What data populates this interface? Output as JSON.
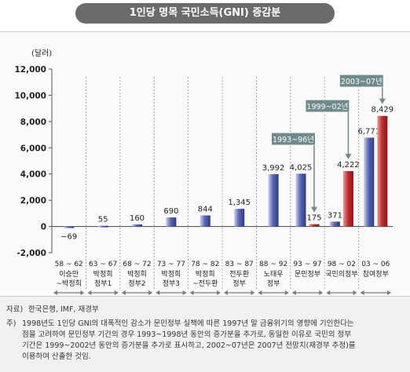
{
  "title": "1인당 명목 국민소득(GNI) 증감분",
  "chart_data": {
    "type": "bar",
    "ylabel": "(달러)",
    "ylim": [
      -2000,
      12000
    ],
    "yticks": [
      "12,000",
      "10,000",
      "8,000",
      "6,000",
      "4,000",
      "2,000",
      "0",
      "-2,000"
    ],
    "ytick_values": [
      12000,
      10000,
      8000,
      6000,
      4000,
      2000,
      0,
      -2000
    ],
    "grid": "vertical dashed separators",
    "groups": [
      {
        "period": "58 ~ 62",
        "era": [
          "이승만",
          "~박정희"
        ],
        "bars": [
          {
            "value": -69,
            "label": "−69",
            "color": "blue"
          }
        ]
      },
      {
        "period": "63 ~ 67",
        "era": [
          "박정희",
          "정부1"
        ],
        "bars": [
          {
            "value": 55,
            "label": "55",
            "color": "blue"
          }
        ]
      },
      {
        "period": "68 ~ 72",
        "era": [
          "박정희",
          "정부2"
        ],
        "bars": [
          {
            "value": 160,
            "label": "160",
            "color": "blue"
          }
        ]
      },
      {
        "period": "73 ~ 77",
        "era": [
          "박정희",
          "정부3"
        ],
        "bars": [
          {
            "value": 690,
            "label": "690",
            "color": "blue"
          }
        ]
      },
      {
        "period": "78 ~ 82",
        "era": [
          "박정희",
          "~전두환"
        ],
        "bars": [
          {
            "value": 844,
            "label": "844",
            "color": "blue"
          }
        ]
      },
      {
        "period": "83 ~ 87",
        "era": [
          "전두환",
          "정부"
        ],
        "bars": [
          {
            "value": 1345,
            "label": "1,345",
            "color": "blue"
          }
        ]
      },
      {
        "period": "88 ~ 92",
        "era": [
          "노태우",
          "정부"
        ],
        "bars": [
          {
            "value": 3992,
            "label": "3,992",
            "color": "blue"
          }
        ]
      },
      {
        "period": "93 ~ 97",
        "era": [
          "문민정부"
        ],
        "bars": [
          {
            "value": 4025,
            "label": "4,025",
            "color": "blue"
          },
          {
            "value": 175,
            "label": "175",
            "color": "red"
          }
        ]
      },
      {
        "period": "98 ~ 02",
        "era": [
          "국민의정부"
        ],
        "bars": [
          {
            "value": 371,
            "label": "371",
            "color": "blue"
          },
          {
            "value": 4222,
            "label": "4,222",
            "color": "red"
          }
        ]
      },
      {
        "period": "03 ~ 06",
        "era": [
          "참여정부"
        ],
        "bars": [
          {
            "value": 6771,
            "label": "6,771",
            "color": "blue"
          },
          {
            "value": 8429,
            "label": "8,429",
            "color": "red"
          }
        ]
      }
    ],
    "annotations": [
      {
        "text": "1993~96년",
        "group": 7
      },
      {
        "text": "1999~02년",
        "group": 8
      },
      {
        "text": "2003~07년",
        "group": 9
      }
    ],
    "colors": {
      "blue": "#3a4a9a",
      "red": "#b01e1e",
      "callout": "#6f8a8a"
    }
  },
  "notes": {
    "source_prefix": "자료)",
    "source": "한국은행, IMF, 재경부",
    "note_prefix": "주)",
    "note_lines": [
      "1998년도 1인당 GNI의 대폭적인 감소가 문민정부 실책에 따른 1997년 말 금융위기의 영향에 기인한다는",
      "점을 고려하여 문민정부 기간의 경우 1993~1998년 동안의 증가분을 추가로, 동일한 이유로 국민의 정부",
      "기간은 1999~2002년 동안의 증가분을 추가로 표시하고, 2002~07년은 2007년 전망치(재경부 추정)를",
      "이용하여 산출한 것임."
    ]
  }
}
